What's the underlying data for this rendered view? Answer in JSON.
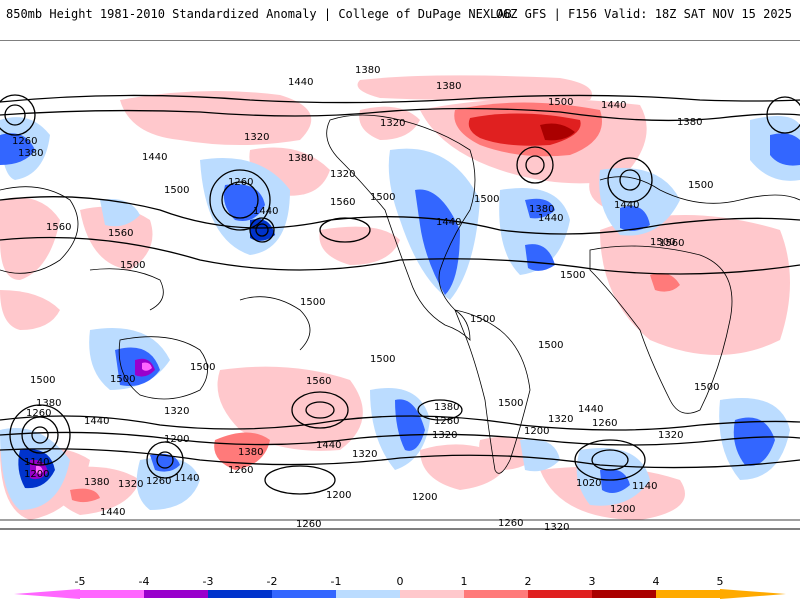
{
  "header": {
    "title": "850mb Height 1981-2010 Standardized Anomaly | College of DuPage NEXLAB",
    "run_info": "06Z GFS | F156 Valid: 18Z SAT NOV 15 2025"
  },
  "colors": {
    "neg5": "#ff66ff",
    "neg4": "#9900cc",
    "neg3": "#0033cc",
    "neg2": "#3366ff",
    "neg1": "#bbdcff",
    "zero": "#ffffff",
    "pos1": "#ffc8cc",
    "pos2": "#ff7a7a",
    "pos3": "#e02020",
    "pos4": "#aa0000",
    "pos5": "#ffaa00"
  },
  "colorbar": {
    "ticks": [
      "-5",
      "-4",
      "-3",
      "-2",
      "-1",
      "0",
      "1",
      "2",
      "3",
      "4",
      "5"
    ]
  },
  "contour_labels": [
    "1380",
    "1440",
    "1380",
    "1500",
    "1440",
    "1320",
    "1260",
    "1380",
    "1440",
    "1320",
    "1500",
    "1560",
    "1500",
    "1380",
    "1440",
    "1500",
    "1500",
    "1560",
    "1440",
    "1500",
    "1560",
    "1440",
    "1260",
    "1380",
    "1440",
    "1320",
    "1380",
    "1500",
    "1560",
    "1500",
    "1500",
    "1500",
    "1500",
    "1500",
    "1500",
    "1500",
    "1500",
    "1500",
    "1500",
    "1380",
    "1260",
    "1440",
    "1320",
    "1200",
    "1140",
    "1200",
    "1320",
    "1440",
    "1380",
    "1260",
    "1200",
    "1320",
    "1260",
    "1140",
    "1380",
    "1260",
    "1320",
    "1440",
    "1560",
    "1380",
    "1260",
    "1320",
    "1440",
    "1320",
    "1200",
    "1020",
    "1140",
    "1200",
    "1260",
    "1320",
    "1200",
    "1260"
  ]
}
